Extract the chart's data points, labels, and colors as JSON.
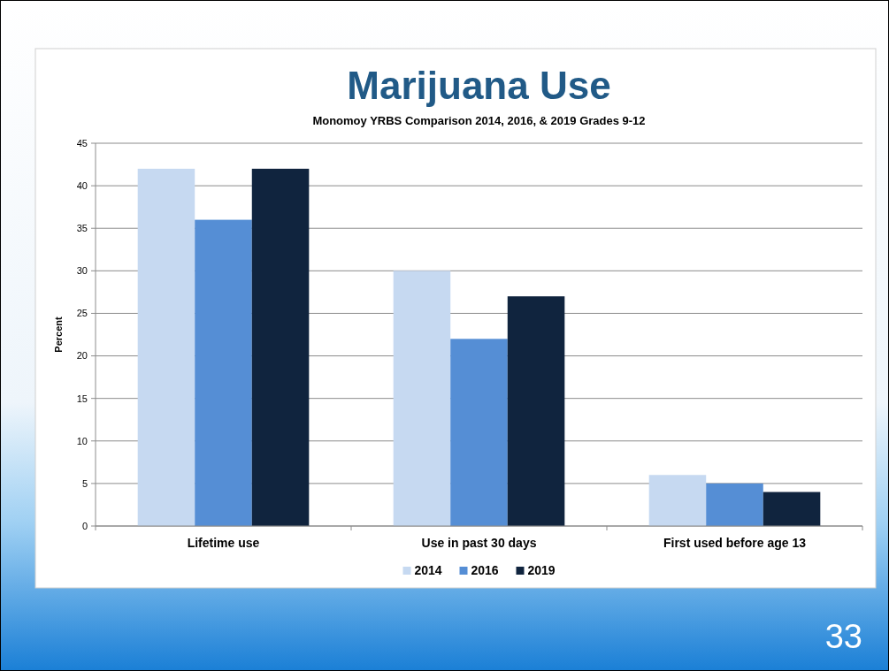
{
  "chart_data": {
    "type": "bar",
    "title": "Marijuana Use",
    "subtitle": "Monomoy YRBS Comparison 2014, 2016, & 2019 Grades 9-12",
    "ylabel": "Percent",
    "categories": [
      "Lifetime use",
      "Use in past 30 days",
      "First used before age 13"
    ],
    "series": [
      {
        "name": "2014",
        "color": "#c6d9f1",
        "values": [
          42,
          30,
          6
        ]
      },
      {
        "name": "2016",
        "color": "#558ed5",
        "values": [
          36,
          22,
          5
        ]
      },
      {
        "name": "2019",
        "color": "#10243e",
        "values": [
          42,
          27,
          4
        ]
      }
    ],
    "ylim": [
      0,
      45
    ],
    "yticks": [
      0,
      5,
      10,
      15,
      20,
      25,
      30,
      35,
      40,
      45
    ],
    "grid": "y",
    "legend": "bottom",
    "annotations": [
      "33"
    ]
  }
}
